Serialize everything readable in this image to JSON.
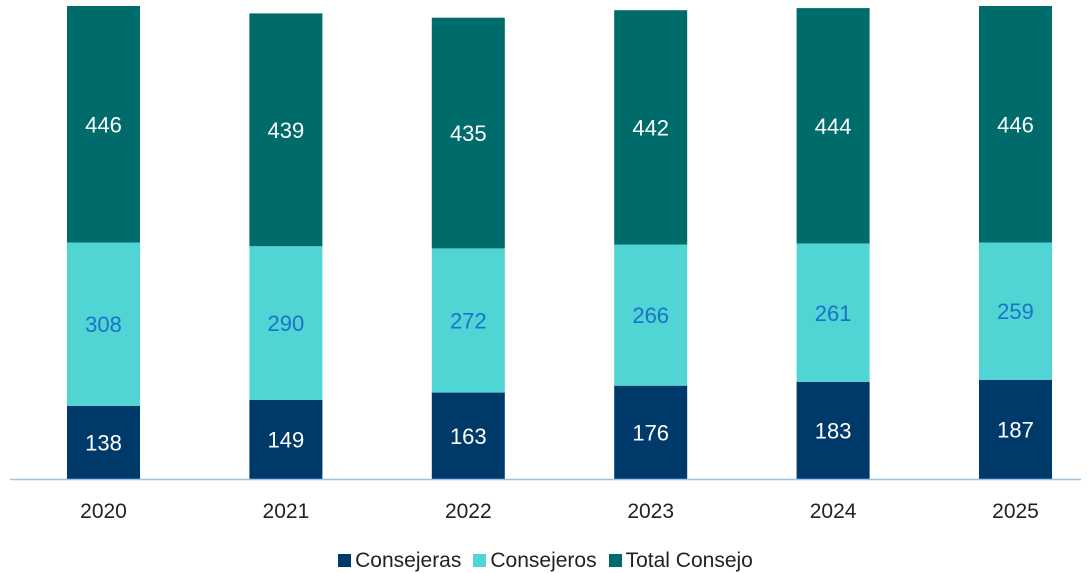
{
  "chart_data": {
    "type": "bar",
    "stacked": true,
    "categories": [
      "2020",
      "2021",
      "2022",
      "2023",
      "2024",
      "2025"
    ],
    "series": [
      {
        "name": "Consejeras",
        "values": [
          138,
          149,
          163,
          176,
          183,
          187
        ],
        "color": "#003a6b",
        "label_color": "#ffffff"
      },
      {
        "name": "Consejeros",
        "values": [
          308,
          290,
          272,
          266,
          261,
          259
        ],
        "color": "#50d4d4",
        "label_color": "#1a73c9"
      },
      {
        "name": "Total Consejo",
        "values": [
          446,
          439,
          435,
          442,
          444,
          446
        ],
        "color": "#006b6b",
        "label_color": "#ffffff"
      }
    ],
    "ylim": [
      0,
      892
    ],
    "grid": false,
    "legend_position": "bottom-center",
    "axis_color": "#9cc3e6"
  }
}
